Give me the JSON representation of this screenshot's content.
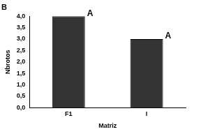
{
  "chart_data": {
    "type": "bar",
    "title": "B",
    "categories": [
      "F1",
      "I"
    ],
    "values": [
      4.0,
      3.0
    ],
    "color": "#333333",
    "x_label": "Matriz",
    "y_label": "Nbrotos",
    "ylim": [
      0,
      4
    ],
    "yticks": [
      {
        "value": 0,
        "label": "0,0"
      },
      {
        "value": 0.5,
        "label": "0,5"
      },
      {
        "value": 1,
        "label": "1,0"
      },
      {
        "value": 1.5,
        "label": "1,5"
      },
      {
        "value": 2,
        "label": "2,0"
      },
      {
        "value": 2.5,
        "label": "2,5"
      },
      {
        "value": 3,
        "label": "3,0"
      },
      {
        "value": 3.5,
        "label": "3,5"
      },
      {
        "value": 4,
        "label": "4,0"
      }
    ],
    "grid": false,
    "annotations": [
      {
        "category": "F1",
        "text": "A"
      },
      {
        "category": "I",
        "text": "A"
      }
    ]
  }
}
